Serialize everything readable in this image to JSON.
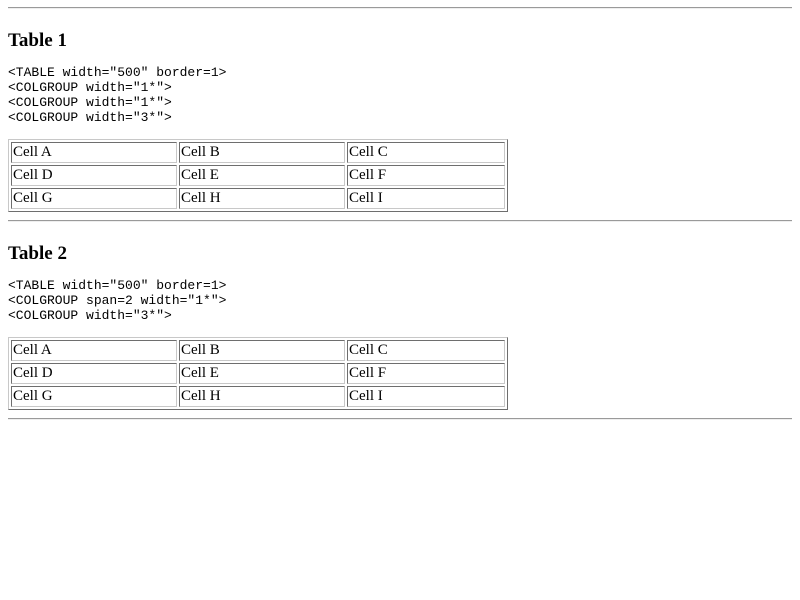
{
  "table1": {
    "heading": "Table 1",
    "code": [
      "<TABLE width=\"500\" border=1>",
      "<COLGROUP width=\"1*\">",
      "<COLGROUP width=\"1*\">",
      "<COLGROUP width=\"3*\">"
    ],
    "rows": [
      [
        "Cell A",
        "Cell B",
        "Cell C"
      ],
      [
        "Cell D",
        "Cell E",
        "Cell F"
      ],
      [
        "Cell G",
        "Cell H",
        "Cell I"
      ]
    ]
  },
  "table2": {
    "heading": "Table 2",
    "code": [
      "<TABLE width=\"500\" border=1>",
      "<COLGROUP span=2 width=\"1*\">",
      "<COLGROUP width=\"3*\">"
    ],
    "rows": [
      [
        "Cell A",
        "Cell B",
        "Cell C"
      ],
      [
        "Cell D",
        "Cell E",
        "Cell F"
      ],
      [
        "Cell G",
        "Cell H",
        "Cell I"
      ]
    ]
  }
}
